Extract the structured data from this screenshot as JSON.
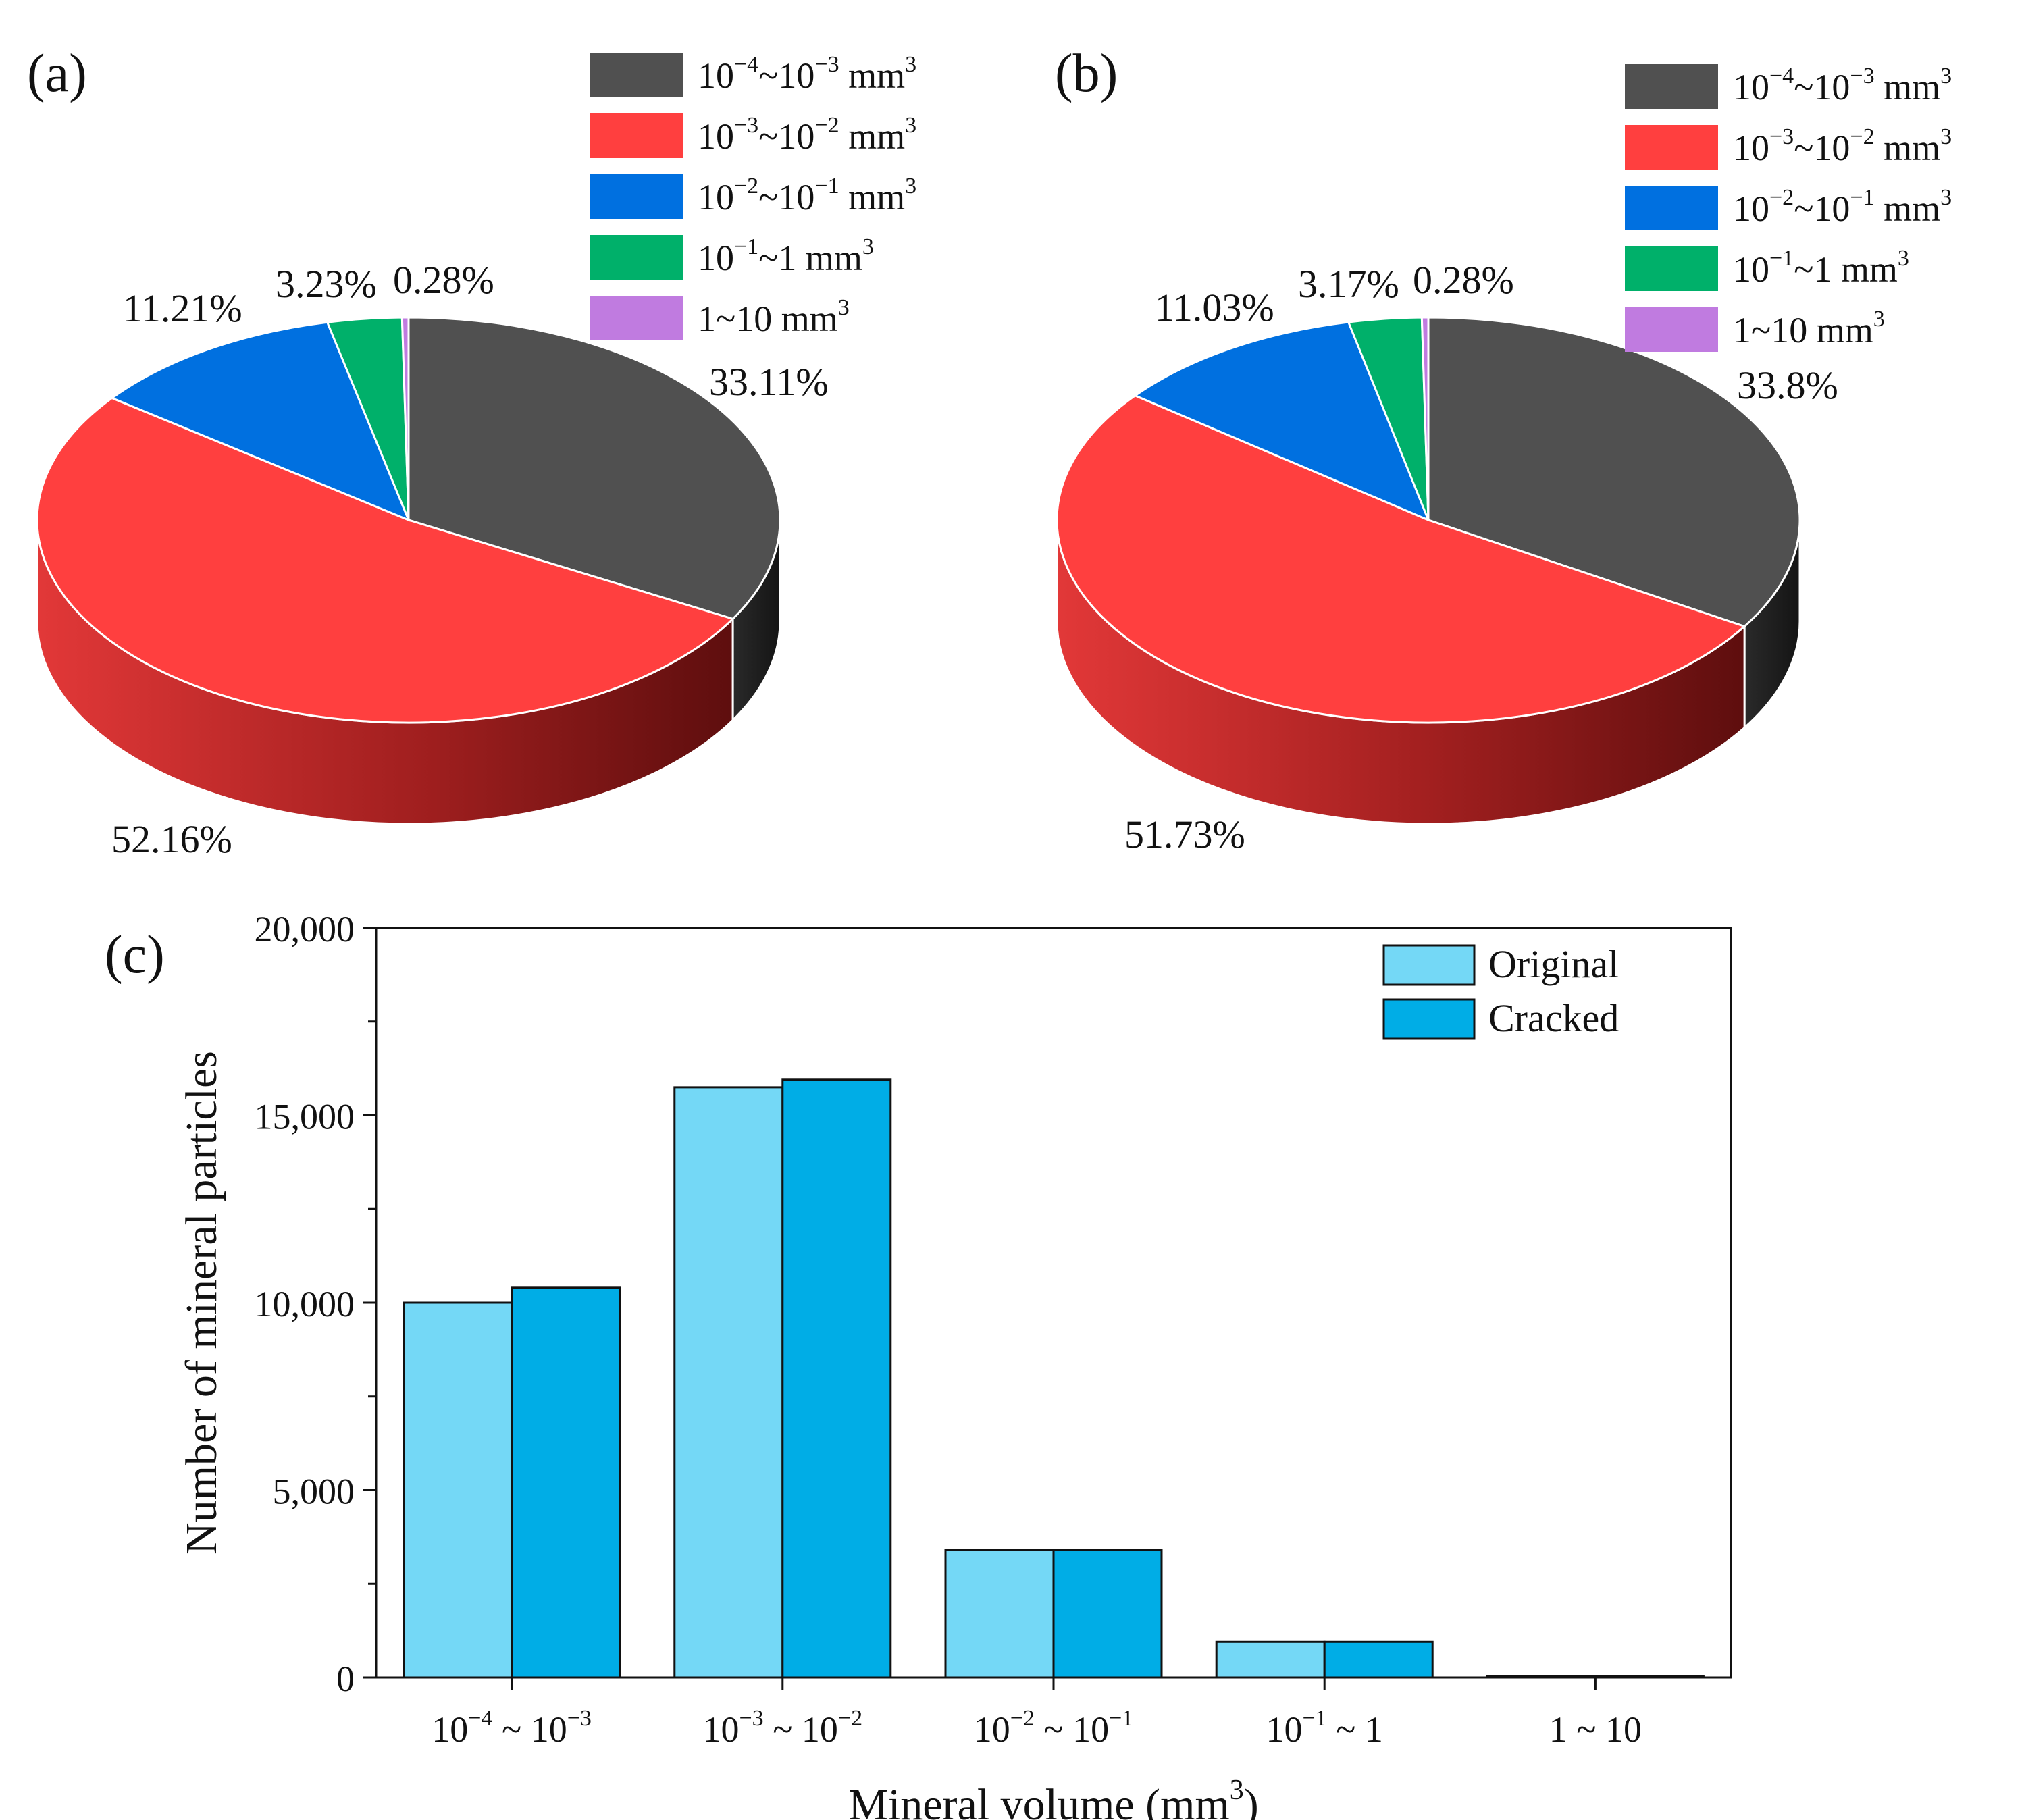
{
  "panels": {
    "a_label": "(a)",
    "b_label": "(b)",
    "c_label": "(c)"
  },
  "legend_pie": [
    {
      "base1": "10",
      "exp1": "−4",
      "base2": "10",
      "exp2": "−3",
      "unit": "mm",
      "unit_exp": "3",
      "color": "#505050"
    },
    {
      "base1": "10",
      "exp1": "−3",
      "base2": "10",
      "exp2": "−2",
      "unit": "mm",
      "unit_exp": "3",
      "color": "#ff3f3f"
    },
    {
      "base1": "10",
      "exp1": "−2",
      "base2": "10",
      "exp2": "−1",
      "unit": "mm",
      "unit_exp": "3",
      "color": "#0070e0"
    },
    {
      "base1": "10",
      "exp1": "−1",
      "base2": "1",
      "exp2": "",
      "unit": "mm",
      "unit_exp": "3",
      "color": "#00b06a"
    },
    {
      "base1": "1",
      "exp1": "",
      "base2": "10",
      "exp2": "",
      "unit": "mm",
      "unit_exp": "3",
      "color": "#c07be0"
    }
  ],
  "chart_data": [
    {
      "type": "pie",
      "panel": "(a)",
      "style": "3d",
      "categories": [
        "10^-4~10^-3 mm^3",
        "10^-3~10^-2 mm^3",
        "10^-2~10^-1 mm^3",
        "10^-1~1 mm^3",
        "1~10 mm^3"
      ],
      "values": [
        33.11,
        52.16,
        11.21,
        3.23,
        0.28
      ],
      "labels": [
        "33.11%",
        "52.16%",
        "11.21%",
        "3.23%",
        "0.28%"
      ],
      "colors": [
        "#505050",
        "#ff3f3f",
        "#0070e0",
        "#00b06a",
        "#c07be0"
      ],
      "legend": "top-right"
    },
    {
      "type": "pie",
      "panel": "(b)",
      "style": "3d",
      "categories": [
        "10^-4~10^-3 mm^3",
        "10^-3~10^-2 mm^3",
        "10^-2~10^-1 mm^3",
        "10^-1~1 mm^3",
        "1~10 mm^3"
      ],
      "values": [
        33.8,
        51.73,
        11.03,
        3.17,
        0.28
      ],
      "labels": [
        "33.8%",
        "51.73%",
        "11.03%",
        "3.17%",
        "0.28%"
      ],
      "colors": [
        "#505050",
        "#ff3f3f",
        "#0070e0",
        "#00b06a",
        "#c07be0"
      ],
      "legend": "top-right"
    },
    {
      "type": "bar",
      "panel": "(c)",
      "categories": [
        "10^-4 ~ 10^-3",
        "10^-3 ~ 10^-2",
        "10^-2 ~ 10^-1",
        "10^-1 ~ 1",
        "1 ~ 10"
      ],
      "series": [
        {
          "name": "Original",
          "values": [
            10000,
            15750,
            3400,
            950,
            40
          ],
          "color": "#74d8f6"
        },
        {
          "name": "Cracked",
          "values": [
            10400,
            15950,
            3400,
            950,
            40
          ],
          "color": "#00ade6"
        }
      ],
      "xlabel": "Mineral volume (mm3)",
      "ylabel": "Number of mineral particles",
      "ylim": [
        0,
        20000
      ],
      "yticks": [
        0,
        5000,
        10000,
        15000,
        20000
      ],
      "ytick_labels": [
        "0",
        "5,000",
        "10,000",
        "15,000",
        "20,000"
      ],
      "legend": "top-right"
    }
  ],
  "bar_xticks": [
    {
      "base1": "10",
      "exp1": "−4",
      "sep": " ~ ",
      "base2": "10",
      "exp2": "−3"
    },
    {
      "base1": "10",
      "exp1": "−3",
      "sep": " ~ ",
      "base2": "10",
      "exp2": "−2"
    },
    {
      "base1": "10",
      "exp1": "−2",
      "sep": " ~ ",
      "base2": "10",
      "exp2": "−1"
    },
    {
      "base1": "10",
      "exp1": "−1",
      "sep": " ~ ",
      "base2": "1",
      "exp2": ""
    },
    {
      "base1": "1",
      "exp1": "",
      "sep": " ~ ",
      "base2": "10",
      "exp2": ""
    }
  ],
  "bar_xlabel": {
    "text": "Mineral volume (mm",
    "exp": "3",
    "close": ")"
  }
}
